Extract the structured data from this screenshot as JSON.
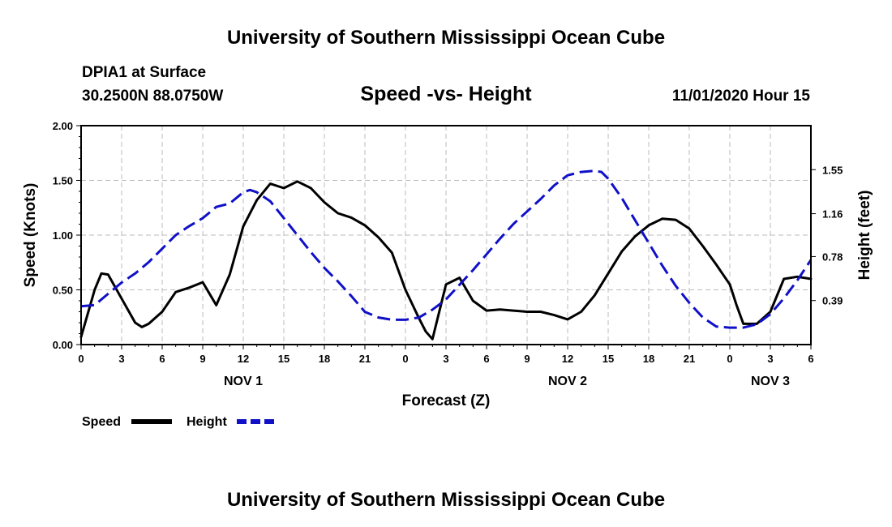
{
  "header": {
    "title_top": "University of Southern Mississippi Ocean Cube",
    "station": "DPIA1 at Surface",
    "coords": "30.2500N 88.0750W",
    "chart_title": "Speed -vs- Height",
    "datetime": "11/01/2020 Hour 15",
    "title_bottom": "University of Southern Mississippi Ocean Cube"
  },
  "legend": {
    "speed_label": "Speed",
    "height_label": "Height"
  },
  "colors": {
    "speed": "#000000",
    "height": "#1010c8",
    "grid": "#bbbbbb"
  },
  "chart_data": {
    "type": "line",
    "title": "Speed -vs- Height",
    "xlabel": "Forecast (Z)",
    "ylabel": "Speed (Knots)",
    "y2label": "Height (feet)",
    "xlim": [
      0,
      54
    ],
    "ylim": [
      0,
      2
    ],
    "y2lim": [
      0,
      1.94
    ],
    "grid": true,
    "x_ticks": [
      0,
      3,
      6,
      9,
      12,
      15,
      18,
      21,
      24,
      27,
      30,
      33,
      36,
      39,
      42,
      45,
      48,
      51,
      54
    ],
    "x_tick_labels": [
      "0",
      "3",
      "6",
      "9",
      "12",
      "15",
      "18",
      "21",
      "0",
      "3",
      "6",
      "9",
      "12",
      "15",
      "18",
      "21",
      "0",
      "3",
      "6"
    ],
    "date_labels": [
      {
        "x": 12,
        "label": "NOV 1"
      },
      {
        "x": 36,
        "label": "NOV 2"
      },
      {
        "x": 51,
        "label": "NOV 3"
      }
    ],
    "y_ticks": [
      0,
      0.5,
      1.0,
      1.5,
      2.0
    ],
    "y_tick_labels": [
      "0.00",
      "0.50",
      "1.00",
      "1.50",
      "2.00"
    ],
    "y2_ticks": [
      0.39,
      0.78,
      1.16,
      1.55
    ],
    "y2_tick_labels": [
      "0.39",
      "0.78",
      "1.16",
      "1.55"
    ],
    "series": [
      {
        "name": "Speed",
        "axis": "left",
        "style": "solid",
        "x": [
          0,
          1,
          1.5,
          2,
          3,
          4,
          4.5,
          5,
          6,
          7,
          8,
          9,
          10,
          11,
          12,
          13,
          14,
          15,
          16,
          17,
          18,
          19,
          20,
          21,
          22,
          23,
          24,
          25,
          25.5,
          26,
          27,
          28,
          29,
          30,
          31,
          32,
          33,
          34,
          35,
          36,
          37,
          38,
          39,
          40,
          41,
          42,
          43,
          44,
          45,
          46,
          47,
          48,
          48.5,
          49,
          50,
          51,
          52,
          53,
          54
        ],
        "values": [
          0.07,
          0.5,
          0.65,
          0.64,
          0.42,
          0.2,
          0.16,
          0.19,
          0.3,
          0.48,
          0.52,
          0.57,
          0.36,
          0.64,
          1.08,
          1.32,
          1.47,
          1.43,
          1.49,
          1.43,
          1.3,
          1.2,
          1.16,
          1.09,
          0.98,
          0.84,
          0.5,
          0.24,
          0.12,
          0.05,
          0.55,
          0.61,
          0.4,
          0.31,
          0.32,
          0.31,
          0.3,
          0.3,
          0.27,
          0.23,
          0.3,
          0.45,
          0.65,
          0.85,
          0.99,
          1.09,
          1.15,
          1.14,
          1.06,
          0.9,
          0.73,
          0.55,
          0.36,
          0.19,
          0.19,
          0.3,
          0.6,
          0.62,
          0.6
        ]
      },
      {
        "name": "Height",
        "axis": "right",
        "style": "dashed",
        "x": [
          0,
          1,
          2,
          3,
          4,
          5,
          6,
          7,
          8,
          9,
          10,
          11,
          12,
          12.5,
          13,
          14,
          15,
          16,
          17,
          18,
          19,
          20,
          21,
          22,
          23,
          24,
          25,
          26,
          27,
          28,
          29,
          30,
          31,
          32,
          33,
          34,
          35,
          36,
          37,
          38,
          38.5,
          39,
          40,
          41,
          42,
          43,
          44,
          45,
          46,
          47,
          48,
          49,
          50,
          51,
          52,
          53,
          54
        ],
        "values": [
          0.34,
          0.35,
          0.45,
          0.55,
          0.63,
          0.73,
          0.85,
          0.97,
          1.05,
          1.12,
          1.22,
          1.25,
          1.35,
          1.37,
          1.35,
          1.27,
          1.12,
          0.97,
          0.82,
          0.68,
          0.56,
          0.43,
          0.29,
          0.24,
          0.22,
          0.22,
          0.24,
          0.31,
          0.4,
          0.53,
          0.66,
          0.8,
          0.94,
          1.07,
          1.18,
          1.29,
          1.41,
          1.5,
          1.53,
          1.54,
          1.53,
          1.47,
          1.3,
          1.1,
          0.9,
          0.7,
          0.52,
          0.37,
          0.24,
          0.16,
          0.15,
          0.15,
          0.18,
          0.27,
          0.41,
          0.57,
          0.75
        ]
      }
    ]
  }
}
